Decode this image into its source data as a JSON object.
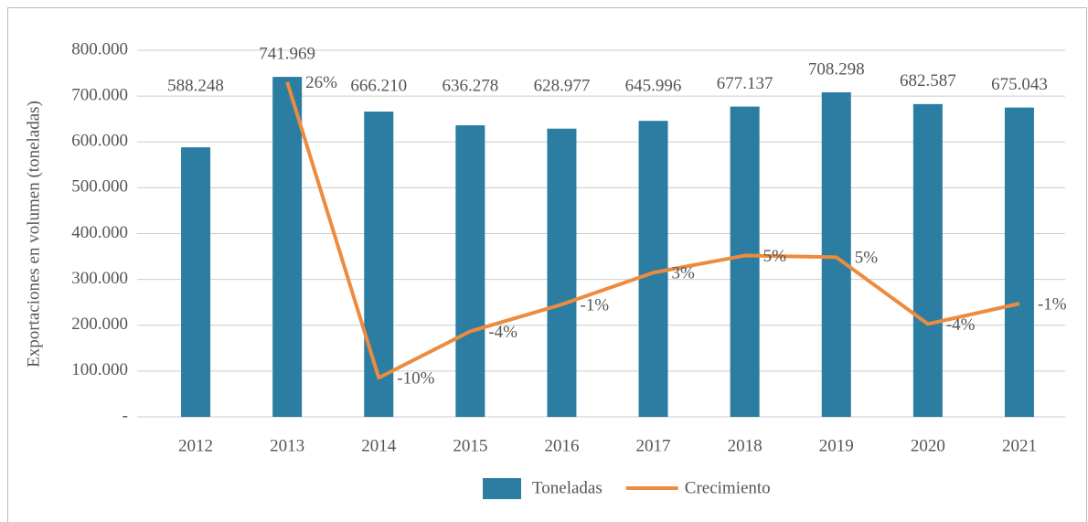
{
  "chart_data": {
    "type": "bar_line",
    "y_axis_label": "Exportaciones en volumen (toneladas)",
    "categories": [
      "2012",
      "2013",
      "2014",
      "2015",
      "2016",
      "2017",
      "2018",
      "2019",
      "2020",
      "2021"
    ],
    "series": [
      {
        "name": "Toneladas",
        "type": "bar",
        "color": "#2b7da1",
        "values": [
          588248,
          741969,
          666210,
          636278,
          628977,
          645996,
          677137,
          708298,
          682587,
          675043
        ],
        "value_labels": [
          "588.248",
          "741.969",
          "666.210",
          "636.278",
          "628.977",
          "645.996",
          "677.137",
          "708.298",
          "682.587",
          "675.043"
        ]
      },
      {
        "name": "Crecimiento",
        "type": "line",
        "axis": "y2",
        "color": "#ed8b3e",
        "values": [
          null,
          26.1,
          -10.2,
          -4.5,
          -1.2,
          2.7,
          4.8,
          4.6,
          -3.6,
          -1.1
        ],
        "value_labels": [
          null,
          "26%",
          "-10%",
          "-4%",
          "-1%",
          "3%",
          "5%",
          "5%",
          "-4%",
          "-1%"
        ]
      }
    ],
    "ylim": [
      0,
      800000
    ],
    "yticks": [
      {
        "value": 0,
        "label": "-"
      },
      {
        "value": 100000,
        "label": "100.000"
      },
      {
        "value": 200000,
        "label": "200.000"
      },
      {
        "value": 300000,
        "label": "300.000"
      },
      {
        "value": 400000,
        "label": "400.000"
      },
      {
        "value": 500000,
        "label": "500.000"
      },
      {
        "value": 600000,
        "label": "600.000"
      },
      {
        "value": 700000,
        "label": "700.000"
      },
      {
        "value": 800000,
        "label": "800.000"
      }
    ],
    "y2lim": [
      -15,
      30
    ],
    "grid": true,
    "legend": "bottom"
  }
}
